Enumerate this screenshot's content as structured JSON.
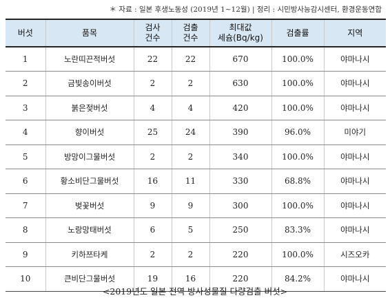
{
  "source_note": "＊ 자료 : 일본 후생노동성 (2019년 1~12월) | 정리 : 시민방사능감시센터, 환경운동연합",
  "table": {
    "headers": [
      "버섯",
      "품목",
      "검사\n건수",
      "검출\n건수",
      "최대값\n세슘(Bq/kg)",
      "검출률",
      "지역"
    ],
    "rows": [
      [
        "1",
        "노란띠끈적버섯",
        "22",
        "22",
        "670",
        "100.0%",
        "야마나시"
      ],
      [
        "2",
        "금빛송이버섯",
        "2",
        "2",
        "630",
        "100.0%",
        "야마나시"
      ],
      [
        "3",
        "붉은젖버섯",
        "4",
        "4",
        "420",
        "100.0%",
        "야마나시"
      ],
      [
        "4",
        "향이버섯",
        "25",
        "24",
        "390",
        "96.0%",
        "미야기"
      ],
      [
        "5",
        "방망이그물버섯",
        "2",
        "2",
        "340",
        "100.0%",
        "야마나시"
      ],
      [
        "6",
        "황소비단그물버섯",
        "16",
        "11",
        "330",
        "68.8%",
        "야마나시"
      ],
      [
        "7",
        "벚꽃버섯",
        "9",
        "9",
        "300",
        "100.0%",
        "야마나시"
      ],
      [
        "8",
        "노랑망태버섯",
        "6",
        "5",
        "250",
        "83.3%",
        "야마나시"
      ],
      [
        "9",
        "키하쯔타케",
        "2",
        "2",
        "220",
        "100.0%",
        "시즈오카"
      ],
      [
        "10",
        "큰비단그물버섯",
        "19",
        "16",
        "220",
        "84.2%",
        "야마나시"
      ]
    ]
  },
  "caption": "<2019년도 일본 전역 방사성물질 다량검출 버섯>"
}
